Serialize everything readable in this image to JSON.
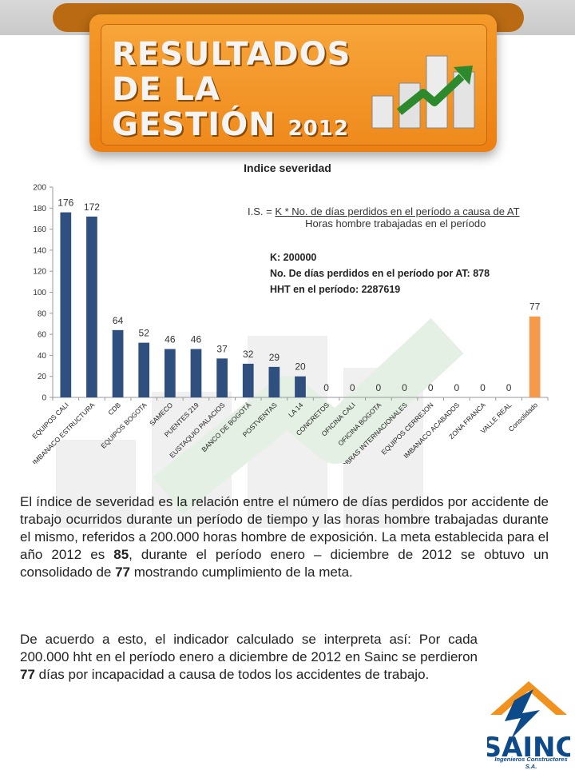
{
  "header": {
    "title_line1": "RESULTADOS",
    "title_line2": "DE LA",
    "title_line3": "GESTIÓN",
    "title_year": "2012"
  },
  "chart_heading": "Indice severidad",
  "formula": {
    "prefix": "I.S. = ",
    "numerator": "K * No. de días perdidos en el período a causa de AT",
    "denominator": "Horas hombre trabajadas en el período"
  },
  "constants": {
    "k": "K: 200000",
    "days": "No. De días perdidos en el período por AT: 878",
    "hht": "HHT en el período: 2287619"
  },
  "chart_data": {
    "type": "bar",
    "title": "Indice severidad",
    "categories": [
      "EQUIPOS CALI",
      "IMBANACO ESTRUCTURA",
      "CDB",
      "EQUIPOS BOGOTA",
      "SAMECO",
      "PUENTES 219",
      "EUSTAQUIO PALACIOS",
      "BANCO DE BOGOTÁ",
      "POSTVENTAS",
      "LA 14",
      "CONCRETOS",
      "OFICINA CALI",
      "OFICINA BOGOTA",
      "OBRAS INTERNACIONALES",
      "EQUIPOS CERREJON",
      "IMBANACO ACABADOS",
      "ZONA FRANCA",
      "VALLE REAL",
      "Consolidado"
    ],
    "values": [
      176,
      172,
      64,
      52,
      46,
      46,
      37,
      32,
      29,
      20,
      0,
      0,
      0,
      0,
      0,
      0,
      0,
      0,
      77
    ],
    "yticks": [
      0,
      20,
      40,
      60,
      80,
      100,
      120,
      140,
      160,
      180,
      200
    ],
    "ylim": [
      0,
      200
    ],
    "grid": false,
    "colors": {
      "bar": "#2f4f7f",
      "highlight": "#f59a4a"
    },
    "highlight_category": "Consolidado"
  },
  "paragraph1": {
    "a": "El índice de severidad es la relación entre el número de días perdidos por accidente de trabajo ocurridos durante un período de tiempo y las horas hombre trabajadas durante el mismo, referidos a 200.000 horas hombre de exposición. La meta establecida para el año 2012 es ",
    "b": "85",
    "c": ", durante el período enero – diciembre de 2012 se obtuvo un consolidado de ",
    "d": "77",
    "e": " mostrando cumplimiento de la meta."
  },
  "paragraph2": {
    "a": "De acuerdo a esto, el indicador calculado se interpreta así:  Por cada 200.000 hht en el período enero a diciembre de 2012 en Sainc se perdieron ",
    "b": "77",
    "c": " días por incapacidad a causa de todos los accidentes de trabajo."
  },
  "logo": {
    "name": "SAINC",
    "tagline": "Ingenieros Constructores S.A."
  }
}
